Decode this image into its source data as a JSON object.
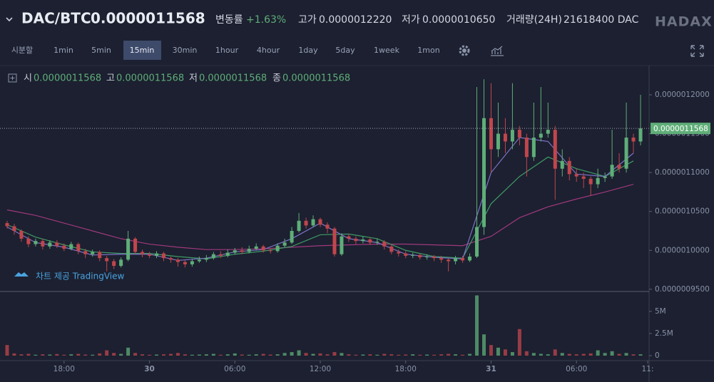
{
  "header": {
    "pair": "DAC/BTC",
    "price": "0.0000011568",
    "change_label": "변동률",
    "change": "+1.63%",
    "high_label": "고가",
    "high": "0.0000012220",
    "low_label": "저가",
    "low": "0.0000010650",
    "volume_label": "거래량(24H)",
    "volume": "21618400 DAC",
    "logo": "HADAX"
  },
  "toolbar": {
    "intervals": [
      "시분할",
      "1min",
      "5min",
      "15min",
      "30min",
      "1hour",
      "4hour",
      "1day",
      "5day",
      "1week",
      "1mon"
    ],
    "active": 3
  },
  "legend": [
    {
      "label": "시",
      "value": "0.0000011568"
    },
    {
      "label": "고",
      "value": "0.0000011568"
    },
    {
      "label": "저",
      "value": "0.0000011568"
    },
    {
      "label": "종",
      "value": "0.0000011568"
    }
  ],
  "attribution": "차트 제공 TradingView",
  "chart_data": {
    "type": "candlestick",
    "x": [
      14,
      14.5,
      15,
      15.5,
      16,
      16.5,
      17,
      17.5,
      18,
      18.5,
      19,
      19.5,
      20,
      20.5,
      21,
      21.5,
      22,
      22.5,
      23,
      23.5,
      24,
      24.5,
      25,
      25.5,
      26,
      26.5,
      27,
      27.5,
      28,
      28.5,
      29,
      29.5,
      30,
      30.5,
      31,
      31.5,
      32,
      32.5,
      33,
      33.5,
      34,
      34.5,
      35,
      35.5,
      36,
      36.5,
      37,
      37.5,
      38,
      38.5,
      39,
      39.5,
      40,
      40.5,
      41,
      41.5,
      42,
      42.5,
      43,
      43.5,
      44,
      44.5,
      45,
      45.5,
      46,
      46.5,
      47,
      47.5,
      48,
      48.5,
      49,
      49.5,
      50,
      50.5,
      51,
      51.5,
      52,
      52.5,
      53,
      53.5,
      54,
      54.5,
      55,
      55.5,
      56,
      56.5,
      57,
      57.5,
      58,
      58.5
    ],
    "open": [
      1.035e-06,
      1.031e-06,
      1.025e-06,
      1.015e-06,
      1.008e-06,
      1.012e-06,
      1.005e-06,
      1.01e-06,
      1.006e-06,
      1.002e-06,
      1.008e-06,
      9.99e-07,
      9.95e-07,
      9.98e-07,
      9.9e-07,
      9.86e-07,
      9.8e-07,
      9.88e-07,
      1.015e-06,
      9.98e-07,
      9.95e-07,
      9.93e-07,
      9.96e-07,
      9.9e-07,
      9.88e-07,
      9.85e-07,
      9.82e-07,
      9.86e-07,
      9.88e-07,
      9.9e-07,
      9.95e-07,
      9.93e-07,
      9.97e-07,
      1e-06,
      9.98e-07,
      1.002e-06,
      1.005e-06,
      1e-06,
      9.99e-07,
      1.006e-06,
      1.01e-06,
      1.025e-06,
      1.038e-06,
      1.032e-06,
      1.04e-06,
      1.033e-06,
      1.028e-06,
      9.95e-07,
      1.018e-06,
      1.015e-06,
      1.012e-06,
      1.014e-06,
      1.01e-06,
      1.011e-06,
      1.005e-06,
      9.98e-07,
      9.96e-07,
      9.93e-07,
      9.94e-07,
      9.91e-07,
      9.92e-07,
      9.9e-07,
      9.88e-07,
      9.86e-07,
      9.9e-07,
      9.87e-07,
      9.92e-07,
      1.03e-06,
      1.17e-06,
      1.13e-06,
      1.15e-06,
      1.14e-06,
      1.155e-06,
      1.145e-06,
      1.12e-06,
      1.145e-06,
      1.15e-06,
      1.155e-06,
      1.105e-06,
      1.115e-06,
      1.098e-06,
      1.095e-06,
      1.092e-06,
      1.085e-06,
      1.093e-06,
      1.095e-06,
      1.11e-06,
      1.105e-06,
      1.145e-06,
      1.14e-06
    ],
    "high": [
      1.038e-06,
      1.034e-06,
      1.027e-06,
      1.018e-06,
      1.015e-06,
      1.015e-06,
      1.013e-06,
      1.013e-06,
      1.009e-06,
      1.011e-06,
      1.01e-06,
      1.002e-06,
      1.001e-06,
      1e-06,
      9.93e-07,
      9.89e-07,
      9.91e-07,
      1.025e-06,
      1.017e-06,
      1.001e-06,
      9.98e-07,
      9.99e-07,
      9.98e-07,
      9.92e-07,
      9.9e-07,
      9.87e-07,
      9.89e-07,
      9.92e-07,
      9.94e-07,
      9.98e-07,
      9.99e-07,
      1.001e-06,
      1.003e-06,
      1.004e-06,
      1.006e-06,
      1.009e-06,
      1.007e-06,
      1.003e-06,
      1.009e-06,
      1.015e-06,
      1.03e-06,
      1.048e-06,
      1.042e-06,
      1.045e-06,
      1.042e-06,
      1.036e-06,
      1.03e-06,
      1.022e-06,
      1.021e-06,
      1.018e-06,
      1.018e-06,
      1.017e-06,
      1.015e-06,
      1.013e-06,
      1.007e-06,
      1.001e-06,
      9.99e-07,
      9.97e-07,
      9.96e-07,
      9.95e-07,
      9.94e-07,
      9.93e-07,
      9.9e-07,
      9.93e-07,
      9.93e-07,
      9.96e-07,
      1.21e-06,
      1.22e-06,
      1.215e-06,
      1.19e-06,
      1.17e-06,
      1.215e-06,
      1.16e-06,
      1.15e-06,
      1.19e-06,
      1.21e-06,
      1.19e-06,
      1.16e-06,
      1.13e-06,
      1.12e-06,
      1.105e-06,
      1.1e-06,
      1.095e-06,
      1.105e-06,
      1.1e-06,
      1.155e-06,
      1.125e-06,
      1.19e-06,
      1.15e-06,
      1.2e-06
    ],
    "low": [
      1.028e-06,
      1.02e-06,
      1.011e-06,
      1.004e-06,
      1.005e-06,
      1.001e-06,
      1.002e-06,
      1.003e-06,
      9.99e-07,
      1e-06,
      9.95e-07,
      9.9e-07,
      9.92e-07,
      9.86e-07,
      9.73e-07,
      9.76e-07,
      9.78e-07,
      9.86e-07,
      9.95e-07,
      9.91e-07,
      9.9e-07,
      9.9e-07,
      9.86e-07,
      9.84e-07,
      9.79e-07,
      9.78e-07,
      9.79e-07,
      9.84e-07,
      9.85e-07,
      9.88e-07,
      9.9e-07,
      9.91e-07,
      9.95e-07,
      9.95e-07,
      9.96e-07,
      1e-06,
      9.97e-07,
      9.96e-07,
      9.97e-07,
      1.004e-06,
      1.008e-06,
      1.023e-06,
      1.028e-06,
      1.03e-06,
      1.03e-06,
      1.022e-06,
      9.92e-07,
      9.93e-07,
      1.011e-06,
      1.008e-06,
      1.009e-06,
      1.007e-06,
      1.007e-06,
      1.001e-06,
      9.95e-07,
      9.92e-07,
      9.9e-07,
      9.9e-07,
      9.88e-07,
      9.88e-07,
      9.86e-07,
      9.84e-07,
      9.73e-07,
      9.82e-07,
      9.84e-07,
      9.85e-07,
      9.9e-07,
      1.02e-06,
      1.1e-06,
      1.12e-06,
      1.125e-06,
      1.13e-06,
      1.135e-06,
      1.095e-06,
      1.115e-06,
      1.14e-06,
      1.145e-06,
      1.065e-06,
      1.095e-06,
      1.09e-06,
      1.088e-06,
      1.08e-06,
      1.07e-06,
      1.08e-06,
      1.088e-06,
      1.092e-06,
      1.1e-06,
      1.1e-06,
      1.125e-06,
      1.135e-06
    ],
    "close": [
      1.031e-06,
      1.025e-06,
      1.015e-06,
      1.008e-06,
      1.012e-06,
      1.005e-06,
      1.01e-06,
      1.006e-06,
      1.002e-06,
      1.008e-06,
      9.99e-07,
      9.95e-07,
      9.98e-07,
      9.9e-07,
      9.86e-07,
      9.8e-07,
      9.88e-07,
      1.015e-06,
      9.98e-07,
      9.95e-07,
      9.93e-07,
      9.96e-07,
      9.9e-07,
      9.88e-07,
      9.85e-07,
      9.82e-07,
      9.86e-07,
      9.88e-07,
      9.9e-07,
      9.95e-07,
      9.93e-07,
      9.97e-07,
      1e-06,
      9.98e-07,
      1.002e-06,
      1.005e-06,
      1e-06,
      9.99e-07,
      1.006e-06,
      1.01e-06,
      1.025e-06,
      1.038e-06,
      1.032e-06,
      1.04e-06,
      1.033e-06,
      1.028e-06,
      9.95e-07,
      1.018e-06,
      1.015e-06,
      1.012e-06,
      1.014e-06,
      1.01e-06,
      1.011e-06,
      1.005e-06,
      9.98e-07,
      9.96e-07,
      9.93e-07,
      9.94e-07,
      9.91e-07,
      9.92e-07,
      9.9e-07,
      9.88e-07,
      9.86e-07,
      9.9e-07,
      9.87e-07,
      9.92e-07,
      1.03e-06,
      1.17e-06,
      1.13e-06,
      1.15e-06,
      1.14e-06,
      1.155e-06,
      1.145e-06,
      1.12e-06,
      1.145e-06,
      1.15e-06,
      1.155e-06,
      1.105e-06,
      1.115e-06,
      1.098e-06,
      1.095e-06,
      1.092e-06,
      1.085e-06,
      1.093e-06,
      1.095e-06,
      1.11e-06,
      1.105e-06,
      1.145e-06,
      1.14e-06,
      1.1568e-06
    ],
    "up_color": "#5fae78",
    "down_color": "#c0464c",
    "lines": [
      {
        "color": "#a0387e",
        "x": [
          14,
          16,
          18,
          20,
          22,
          24,
          26,
          28,
          30,
          32,
          34,
          36,
          38,
          40,
          42,
          44,
          46,
          48,
          50,
          52,
          54,
          56,
          58
        ],
        "values": [
          1.052e-06,
          1.045e-06,
          1.035e-06,
          1.025e-06,
          1.015e-06,
          1.008e-06,
          1.004e-06,
          1.001e-06,
          1.001e-06,
          1.002e-06,
          1.004e-06,
          1.006e-06,
          1.007e-06,
          1.008e-06,
          1.008e-06,
          1.007e-06,
          1.006e-06,
          1.018e-06,
          1.042e-06,
          1.056e-06,
          1.066e-06,
          1.075e-06,
          1.085e-06
        ]
      },
      {
        "color": "#3f9a66",
        "x": [
          14,
          16,
          18,
          20,
          22,
          24,
          26,
          28,
          30,
          32,
          34,
          36,
          38,
          40,
          42,
          44,
          46,
          48,
          50,
          52,
          54,
          56,
          58
        ],
        "values": [
          1.033e-06,
          1.017e-06,
          1.007e-06,
          9.98e-07,
          9.96e-07,
          9.96e-07,
          9.92e-07,
          9.89e-07,
          9.95e-07,
          9.99e-07,
          1.005e-06,
          1.02e-06,
          1.021e-06,
          1.015e-06,
          1e-06,
          9.92e-07,
          9.9e-07,
          1.06e-06,
          1.095e-06,
          1.12e-06,
          1.105e-06,
          1.095e-06,
          1.115e-06
        ]
      },
      {
        "color": "#7d72c8",
        "x": [
          14,
          16,
          18,
          20,
          22,
          24,
          26,
          28,
          30,
          32,
          34,
          36,
          38,
          40,
          42,
          44,
          46,
          48,
          50,
          52,
          54,
          56,
          58
        ],
        "values": [
          1.03e-06,
          1.01e-06,
          1.004e-06,
          9.94e-07,
          9.95e-07,
          9.95e-07,
          9.87e-07,
          9.9e-07,
          9.98e-07,
          1.001e-06,
          1.015e-06,
          1.035e-06,
          1.015e-06,
          1.01e-06,
          9.95e-07,
          9.91e-07,
          9.89e-07,
          1.1e-06,
          1.145e-06,
          1.14e-06,
          1.098e-06,
          1.095e-06,
          1.125e-06
        ]
      }
    ],
    "last_price": 1.1568e-06,
    "xlim": [
      13.5,
      59.1
    ],
    "xticks": [
      {
        "value": 18,
        "label": "18:00"
      },
      {
        "value": 24,
        "label": "30"
      },
      {
        "value": 30,
        "label": "06:00"
      },
      {
        "value": 36,
        "label": "12:00"
      },
      {
        "value": 42,
        "label": "18:00"
      },
      {
        "value": 48,
        "label": "31"
      },
      {
        "value": 54,
        "label": "06:00"
      },
      {
        "value": 59,
        "label": "11:"
      }
    ],
    "ylim": [
      9.48e-07,
      1.2367e-06
    ],
    "yticks": [
      {
        "value": 9.5e-07,
        "label": "0.0000009500"
      },
      {
        "value": 1e-06,
        "label": "0.0000010000"
      },
      {
        "value": 1.05e-06,
        "label": "0.0000010500"
      },
      {
        "value": 1.1e-06,
        "label": "0.0000011000"
      },
      {
        "value": 1.15e-06,
        "label": "0.0000011500"
      },
      {
        "value": 1.2e-06,
        "label": "0.0000012000"
      }
    ],
    "volume": {
      "ylim": [
        0,
        7000000
      ],
      "yticks": [
        0,
        {
          "value": 2500000,
          "label": "2.5M"
        },
        {
          "value": 5000000,
          "label": "5M"
        }
      ],
      "values": [
        1200000,
        250000,
        150000,
        200000,
        100000,
        150000,
        120000,
        180000,
        100000,
        150000,
        200000,
        120000,
        100000,
        250000,
        600000,
        300000,
        200000,
        900000,
        300000,
        150000,
        100000,
        120000,
        150000,
        200000,
        300000,
        150000,
        100000,
        120000,
        150000,
        200000,
        100000,
        150000,
        250000,
        120000,
        100000,
        150000,
        200000,
        120000,
        150000,
        300000,
        400000,
        600000,
        300000,
        200000,
        250000,
        150000,
        400000,
        300000,
        150000,
        100000,
        120000,
        150000,
        100000,
        200000,
        150000,
        100000,
        120000,
        150000,
        100000,
        120000,
        100000,
        150000,
        200000,
        150000,
        100000,
        200000,
        6800000,
        2400000,
        1200000,
        900000,
        700000,
        400000,
        3000000,
        500000,
        300000,
        200000,
        150000,
        700000,
        300000,
        200000,
        150000,
        200000,
        250000,
        600000,
        300000,
        500000,
        200000,
        300000,
        150000,
        150000
      ]
    }
  }
}
